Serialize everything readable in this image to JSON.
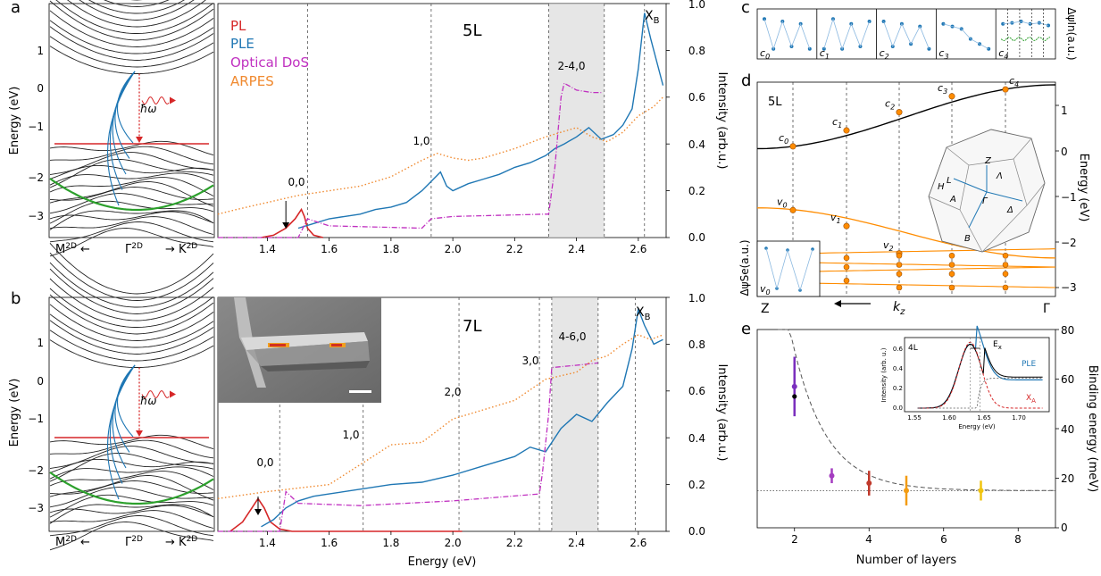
{
  "panel_labels": {
    "a": "a",
    "b": "b",
    "c": "c",
    "d": "d",
    "e": "e"
  },
  "colors": {
    "pl": "#d62728",
    "ple": "#1f77b4",
    "optical_dos": "#c030c0",
    "arpes": "#f08a30",
    "band": "#222222",
    "band_green": "#2ca02c",
    "orange_band": "#ff8c00",
    "shade": "#dcdcdc"
  },
  "band_panel": {
    "ylabel": "Energy (eV)",
    "yticks": [
      "1",
      "0",
      "−1",
      "−2",
      "−3"
    ],
    "x_left": "M",
    "x_left_sup": "2D",
    "x_left_arrow": "←",
    "x_center": "Γ",
    "x_center_sup": "2D",
    "x_right_arrow": "→",
    "x_right": "K",
    "x_right_sup": "2D",
    "hw": "ħω"
  },
  "panel_a": {
    "title": "5L",
    "legend": [
      "PL",
      "PLE",
      "Optical DoS",
      "ARPES"
    ],
    "xticks": [
      "1.4",
      "1.6",
      "1.8",
      "2.0",
      "2.2",
      "2.4",
      "2.6"
    ],
    "yticks": [
      "0.0",
      "0.2",
      "0.4",
      "0.6",
      "0.8",
      "1.0"
    ],
    "ylabel": "Intensity (arb.u.)",
    "annotations": [
      "0,0",
      "1,0",
      "2-4,0"
    ],
    "xb": "X",
    "xb_sub": "B"
  },
  "panel_b": {
    "title": "7L",
    "xticks": [
      "1.4",
      "1.6",
      "1.8",
      "2.0",
      "2.2",
      "2.4",
      "2.6"
    ],
    "yticks": [
      "0.0",
      "0.2",
      "0.4",
      "0.6",
      "0.8",
      "1.0"
    ],
    "ylabel": "Intensity (arb.u.)",
    "xlabel": "Energy (eV)",
    "annotations": [
      "0,0",
      "1,0",
      "2,0",
      "3,0",
      "4-6,0"
    ],
    "xb": "X",
    "xb_sub": "B"
  },
  "panel_c": {
    "labels": [
      "c",
      "c",
      "c",
      "c",
      "c"
    ],
    "subs": [
      "0",
      "1",
      "2",
      "3",
      "4"
    ],
    "ylabel": "ΔψIn(a.u.)"
  },
  "panel_d": {
    "title": "5L",
    "ylabel": "Energy (eV)",
    "yticks": [
      "1",
      "0",
      "−1",
      "−2",
      "−3"
    ],
    "c_labels": [
      "c0",
      "c1",
      "c2",
      "c3",
      "c4"
    ],
    "v_labels": [
      "v0",
      "v1",
      "v2"
    ],
    "x_left": "Z",
    "x_right": "Γ",
    "kz": "k",
    "kz_sub": "z",
    "inset_left_label": "ΔψSe(a.u.)",
    "inset_v0": "v0",
    "bz_labels": [
      "Z",
      "Λ",
      "L",
      "H",
      "Γ",
      "A",
      "Δ",
      "B"
    ]
  },
  "panel_e": {
    "ylabel": "Binding energy (meV)",
    "xlabel": "Number of layers",
    "xticks": [
      "2",
      "4",
      "6",
      "8"
    ],
    "yticks": [
      "0",
      "20",
      "40",
      "60",
      "80"
    ],
    "inset": {
      "title": "4L",
      "ylabel": "Intensity (arb. u.)",
      "xlabel": "Energy (eV)",
      "xticks": [
        "1.55",
        "1.60",
        "1.65",
        "1.70"
      ],
      "yticks": [
        "0.0",
        "0.2",
        "0.4",
        "0.6"
      ],
      "ple": "PLE",
      "xa": "X",
      "xa_sub": "A",
      "ex": "E",
      "ex_sub": "x"
    }
  },
  "chart_data": [
    {
      "type": "line",
      "title": "5L",
      "xlabel": "",
      "ylabel": "Intensity (arb.u.)",
      "xlim": [
        1.24,
        2.69
      ],
      "ylim": [
        0,
        1.0
      ],
      "series": [
        {
          "name": "PL",
          "x": [
            1.38,
            1.42,
            1.46,
            1.49,
            1.51,
            1.52,
            1.53,
            1.55,
            1.58
          ],
          "y": [
            0.0,
            0.01,
            0.04,
            0.08,
            0.12,
            0.09,
            0.04,
            0.01,
            0.0
          ]
        },
        {
          "name": "PLE",
          "x": [
            1.5,
            1.55,
            1.6,
            1.65,
            1.7,
            1.75,
            1.8,
            1.85,
            1.9,
            1.93,
            1.96,
            1.98,
            2.0,
            2.05,
            2.1,
            2.15,
            2.2,
            2.25,
            2.3,
            2.33,
            2.36,
            2.4,
            2.44,
            2.48,
            2.52,
            2.55,
            2.58,
            2.6,
            2.62,
            2.64,
            2.66,
            2.68
          ],
          "y": [
            0.04,
            0.06,
            0.08,
            0.09,
            0.1,
            0.12,
            0.13,
            0.15,
            0.2,
            0.24,
            0.28,
            0.22,
            0.2,
            0.23,
            0.25,
            0.27,
            0.3,
            0.32,
            0.35,
            0.38,
            0.4,
            0.43,
            0.47,
            0.42,
            0.44,
            0.48,
            0.55,
            0.72,
            0.96,
            0.85,
            0.75,
            0.65
          ]
        },
        {
          "name": "Optical DoS",
          "x": [
            1.24,
            1.5,
            1.53,
            1.6,
            1.9,
            1.93,
            2.0,
            2.3,
            2.31,
            2.33,
            2.35,
            2.36,
            2.4,
            2.45,
            2.48
          ],
          "y": [
            0.0,
            0.0,
            0.08,
            0.05,
            0.04,
            0.08,
            0.09,
            0.1,
            0.1,
            0.3,
            0.6,
            0.66,
            0.63,
            0.62,
            0.62
          ]
        },
        {
          "name": "ARPES",
          "x": [
            1.24,
            1.3,
            1.4,
            1.5,
            1.6,
            1.7,
            1.8,
            1.9,
            1.95,
            2.0,
            2.05,
            2.1,
            2.2,
            2.3,
            2.35,
            2.4,
            2.45,
            2.5,
            2.55,
            2.6,
            2.65,
            2.68
          ],
          "y": [
            0.1,
            0.12,
            0.15,
            0.18,
            0.2,
            0.22,
            0.26,
            0.33,
            0.36,
            0.34,
            0.33,
            0.34,
            0.38,
            0.43,
            0.45,
            0.47,
            0.43,
            0.41,
            0.45,
            0.52,
            0.56,
            0.6
          ]
        }
      ],
      "vlines": [
        1.53,
        1.93,
        2.31,
        2.49,
        2.62
      ],
      "shaded_region": [
        2.31,
        2.49
      ]
    },
    {
      "type": "line",
      "title": "7L",
      "xlabel": "Energy (eV)",
      "ylabel": "Intensity (arb.u.)",
      "xlim": [
        1.24,
        2.69
      ],
      "ylim": [
        0,
        1.0
      ],
      "series": [
        {
          "name": "PL",
          "x": [
            1.28,
            1.32,
            1.35,
            1.37,
            1.39,
            1.41,
            1.44,
            1.48,
            2.03
          ],
          "y": [
            0.0,
            0.04,
            0.1,
            0.14,
            0.1,
            0.04,
            0.01,
            0.0,
            0.0
          ]
        },
        {
          "name": "PLE",
          "x": [
            1.38,
            1.42,
            1.46,
            1.5,
            1.55,
            1.6,
            1.7,
            1.8,
            1.9,
            2.0,
            2.1,
            2.2,
            2.25,
            2.3,
            2.35,
            2.4,
            2.45,
            2.5,
            2.55,
            2.58,
            2.6,
            2.62,
            2.65,
            2.68
          ],
          "y": [
            0.02,
            0.05,
            0.1,
            0.13,
            0.15,
            0.16,
            0.18,
            0.2,
            0.21,
            0.24,
            0.28,
            0.32,
            0.36,
            0.34,
            0.44,
            0.5,
            0.47,
            0.55,
            0.62,
            0.78,
            0.95,
            0.88,
            0.8,
            0.82
          ]
        },
        {
          "name": "Optical DoS",
          "x": [
            1.24,
            1.44,
            1.46,
            1.5,
            1.7,
            2.0,
            2.28,
            2.29,
            2.31,
            2.32,
            2.4,
            2.47
          ],
          "y": [
            0.0,
            0.0,
            0.17,
            0.12,
            0.11,
            0.13,
            0.16,
            0.25,
            0.5,
            0.7,
            0.71,
            0.72
          ]
        },
        {
          "name": "ARPES",
          "x": [
            1.24,
            1.4,
            1.6,
            1.8,
            1.9,
            2.0,
            2.1,
            2.2,
            2.3,
            2.4,
            2.45,
            2.5,
            2.55,
            2.6,
            2.64,
            2.68
          ],
          "y": [
            0.14,
            0.17,
            0.2,
            0.37,
            0.38,
            0.48,
            0.52,
            0.56,
            0.65,
            0.68,
            0.73,
            0.75,
            0.8,
            0.84,
            0.82,
            0.84
          ]
        }
      ],
      "vlines": [
        1.44,
        1.71,
        2.02,
        2.28,
        2.32,
        2.47,
        2.59
      ],
      "shaded_region": [
        2.32,
        2.47
      ]
    },
    {
      "type": "scatter",
      "xlabel": "Number of layers",
      "ylabel": "Binding energy (meV)",
      "xlim": [
        1,
        9
      ],
      "ylim": [
        0,
        80
      ],
      "x": [
        2,
        3,
        4,
        5,
        7
      ],
      "y": [
        57,
        21,
        18,
        15,
        15
      ],
      "asymptote": 15
    }
  ]
}
